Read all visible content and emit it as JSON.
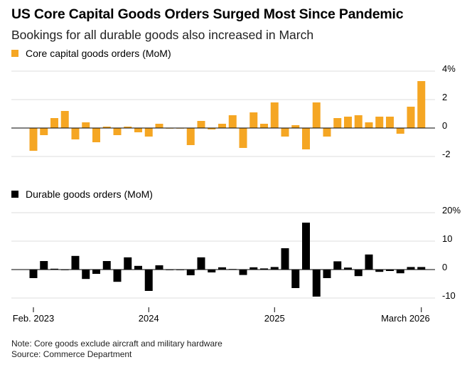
{
  "title": "US Core Capital Goods Orders Surged Most Since Pandemic",
  "subtitle": "Bookings for all durable goods also increased in March",
  "colors": {
    "core": "#f5a623",
    "durable": "#000000",
    "grid": "#dddddd"
  },
  "chart_data": [
    {
      "type": "bar",
      "name": "core",
      "legend": "Core capital goods orders (MoM)",
      "ylim": [
        -2,
        4
      ],
      "ticks": [
        4,
        2,
        0,
        -2
      ],
      "tick_labels": [
        "4%",
        "2",
        "0",
        "-2"
      ],
      "values": [
        -1.6,
        -0.5,
        0.7,
        1.2,
        -0.8,
        0.4,
        -1.0,
        0.1,
        -0.5,
        0.1,
        -0.3,
        -0.6,
        0.3,
        0.0,
        0.0,
        -1.2,
        0.5,
        -0.1,
        0.3,
        0.9,
        -1.4,
        1.1,
        0.3,
        1.8,
        -0.6,
        0.2,
        -1.5,
        1.8,
        -0.6,
        0.7,
        0.8,
        0.9,
        0.4,
        0.8,
        0.8,
        -0.4,
        1.5,
        3.3
      ]
    },
    {
      "type": "bar",
      "name": "durable",
      "legend": "Durable goods orders (MoM)",
      "ylim": [
        -10,
        20
      ],
      "ticks": [
        20,
        10,
        0,
        -10
      ],
      "tick_labels": [
        "20%",
        "10",
        "0",
        "-10"
      ],
      "values": [
        -3.0,
        3.0,
        0.3,
        0.0,
        4.8,
        -3.3,
        -1.5,
        3.0,
        -4.3,
        4.3,
        1.3,
        -7.5,
        1.5,
        0.0,
        0.0,
        -2.0,
        4.3,
        -1.0,
        0.8,
        0.2,
        -1.9,
        0.8,
        0.4,
        0.9,
        7.5,
        -6.5,
        16.5,
        -9.5,
        -3.0,
        2.9,
        0.7,
        -2.3,
        5.3,
        -0.8,
        -0.5,
        -1.3,
        0.9,
        0.9
      ]
    }
  ],
  "x_axis": {
    "labels": [
      "Feb. 2023",
      "2024",
      "2025",
      "March 2026"
    ],
    "label_index": [
      0,
      11,
      23,
      37
    ]
  },
  "footer": {
    "note": "Note: Core goods exclude aircraft and military hardware",
    "source": "Source: Commerce Department"
  }
}
